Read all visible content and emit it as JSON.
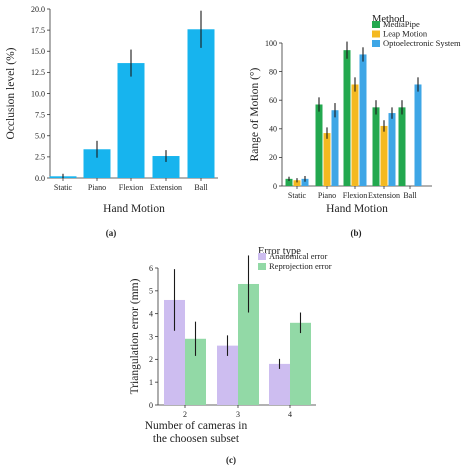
{
  "chart_data": [
    {
      "id": "a",
      "type": "bar",
      "caption": "(a)",
      "xlabel": "Hand Motion",
      "ylabel": "Occlusion level (%)",
      "categories": [
        "Static",
        "Piano",
        "Flexion",
        "Extension",
        "Ball"
      ],
      "ylim": [
        0,
        20
      ],
      "yticks": [
        "0.0",
        "2.5",
        "5.0",
        "7.5",
        "10.0",
        "12.5",
        "15.0",
        "17.5",
        "20.0"
      ],
      "series": [
        {
          "values": [
            0.2,
            3.4,
            13.6,
            2.6,
            17.6
          ],
          "errors": [
            0.3,
            1.0,
            1.6,
            0.7,
            2.2
          ],
          "color": "#17b4ee"
        }
      ],
      "grid": false
    },
    {
      "id": "b",
      "type": "bar",
      "caption": "(b)",
      "xlabel": "Hand Motion",
      "ylabel": "Range of Motion (°)",
      "categories": [
        "Static",
        "Piano",
        "Flexion",
        "Extension",
        "Ball"
      ],
      "ylim": [
        0,
        100
      ],
      "yticks": [
        "0",
        "20",
        "40",
        "60",
        "80",
        "100"
      ],
      "legend_title": "Method",
      "legend_position": "top-right",
      "series": [
        {
          "name": "MediaPipe",
          "values": [
            5,
            57,
            95,
            55,
            55
          ],
          "errors": [
            1.5,
            5,
            6,
            5,
            5
          ],
          "color": "#23a84f"
        },
        {
          "name": "Leap Motion",
          "values": [
            4,
            37,
            71,
            42,
            null
          ],
          "errors": [
            1.5,
            4,
            5,
            4,
            null
          ],
          "color": "#f4b921"
        },
        {
          "name": "Optoelectronic System",
          "values": [
            5,
            53,
            92,
            51,
            71
          ],
          "errors": [
            2,
            5,
            5,
            4,
            5
          ],
          "color": "#3ea6e6"
        }
      ],
      "grid": false
    },
    {
      "id": "c",
      "type": "bar",
      "caption": "(c)",
      "xlabel": "Number of cameras in the choosen subset",
      "ylabel": "Triangulation error (mm)",
      "categories": [
        "2",
        "3",
        "4"
      ],
      "ylim": [
        0,
        6
      ],
      "yticks": [
        "0",
        "1",
        "2",
        "3",
        "4",
        "5",
        "6"
      ],
      "legend_title": "Error type",
      "legend_position": "top-center",
      "series": [
        {
          "name": "Anatomical error",
          "values": [
            4.6,
            2.6,
            1.8
          ],
          "errors": [
            1.35,
            0.45,
            0.22
          ],
          "color": "#cdbdf0"
        },
        {
          "name": "Reprojection error",
          "values": [
            2.9,
            5.3,
            3.6
          ],
          "errors": [
            0.75,
            1.25,
            0.45
          ],
          "color": "#92d9a6"
        }
      ],
      "grid": false
    }
  ]
}
